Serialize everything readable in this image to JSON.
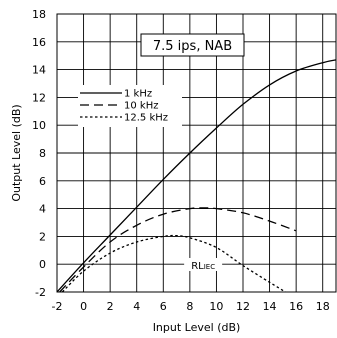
{
  "chart_data": {
    "type": "line",
    "title": "",
    "xlabel": "Input Level (dB)",
    "ylabel": "Output Level (dB)",
    "xlim": [
      -2,
      19
    ],
    "ylim": [
      -2,
      18
    ],
    "xticks": [
      -2,
      0,
      2,
      4,
      6,
      8,
      10,
      12,
      14,
      16,
      18
    ],
    "yticks": [
      -2,
      0,
      2,
      4,
      6,
      8,
      10,
      12,
      14,
      16,
      18
    ],
    "grid": true,
    "annotation_box": "7.5 ips, NAB",
    "annotation_rl": "RL",
    "annotation_rl_sub": "IEC",
    "legend_position": "upper-left",
    "series": [
      {
        "name": "1 kHz",
        "dash": "solid",
        "x": [
          -2,
          0,
          2,
          4,
          6,
          8,
          10,
          12,
          14,
          16,
          18,
          19
        ],
        "y": [
          -2.0,
          0.1,
          2.1,
          4.1,
          6.1,
          8.0,
          9.8,
          11.5,
          12.9,
          13.9,
          14.5,
          14.7
        ]
      },
      {
        "name": "10 kHz",
        "dash": "dashed",
        "x": [
          -1.8,
          0,
          2,
          4,
          6,
          8,
          9,
          10,
          12,
          14,
          16
        ],
        "y": [
          -2.0,
          -0.2,
          1.6,
          2.8,
          3.6,
          4.0,
          4.05,
          4.0,
          3.7,
          3.1,
          2.4
        ]
      },
      {
        "name": "12.5 kHz",
        "dash": "dotted",
        "x": [
          -1.6,
          0,
          2,
          4,
          6,
          7,
          8,
          10,
          12,
          14,
          15.2
        ],
        "y": [
          -2.0,
          -0.5,
          0.8,
          1.6,
          2.0,
          2.05,
          1.9,
          1.2,
          -0.1,
          -1.3,
          -2.0
        ]
      }
    ]
  }
}
